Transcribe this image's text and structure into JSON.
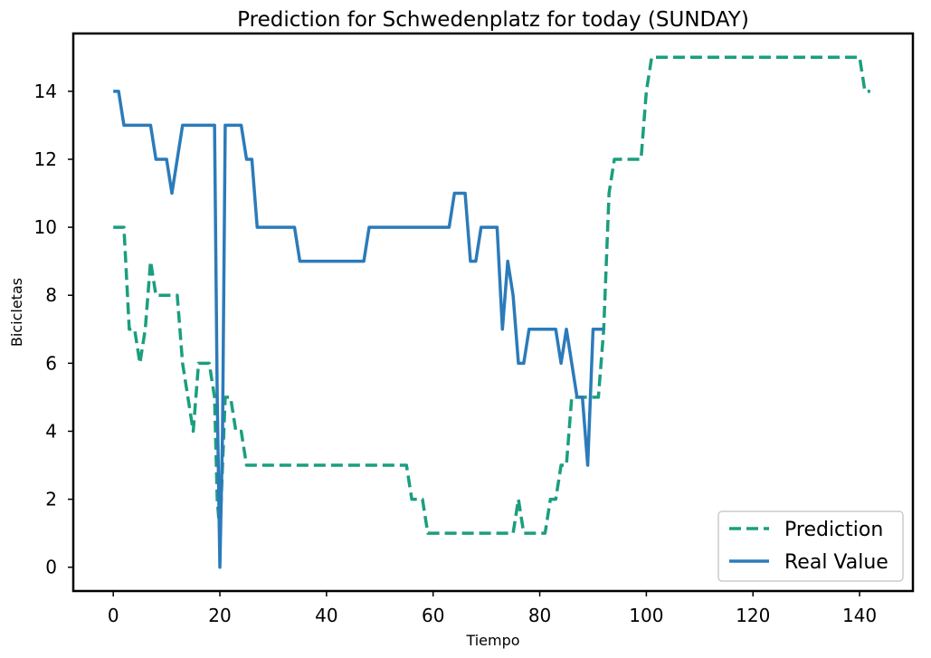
{
  "chart_data": {
    "type": "line",
    "title": "Prediction for Schwedenplatz for today (SUNDAY)",
    "xlabel": "Tiempo",
    "ylabel": "Bicicletas",
    "xlim": [
      -7.5,
      150
    ],
    "ylim": [
      -0.7,
      15.7
    ],
    "xticks": [
      0,
      20,
      40,
      60,
      80,
      100,
      120,
      140
    ],
    "yticks": [
      0,
      2,
      4,
      6,
      8,
      10,
      12,
      14
    ],
    "grid": false,
    "legend_position": "lower right",
    "series": [
      {
        "name": "Prediction",
        "style": "dashed",
        "color": "#1b9e7e",
        "points": [
          [
            0,
            10
          ],
          [
            1,
            10
          ],
          [
            2,
            10
          ],
          [
            3,
            7
          ],
          [
            4,
            7
          ],
          [
            5,
            6
          ],
          [
            6,
            7
          ],
          [
            7,
            9
          ],
          [
            8,
            8
          ],
          [
            9,
            8
          ],
          [
            10,
            8
          ],
          [
            11,
            8
          ],
          [
            12,
            8
          ],
          [
            13,
            6
          ],
          [
            14,
            5
          ],
          [
            15,
            4
          ],
          [
            16,
            6
          ],
          [
            17,
            6
          ],
          [
            18,
            6
          ],
          [
            19,
            5
          ],
          [
            19.5,
            2
          ],
          [
            20,
            1
          ],
          [
            20.5,
            3
          ],
          [
            21,
            5
          ],
          [
            22,
            5
          ],
          [
            23,
            4
          ],
          [
            24,
            4
          ],
          [
            25,
            3
          ],
          [
            26,
            3
          ],
          [
            30,
            3
          ],
          [
            35,
            3
          ],
          [
            40,
            3
          ],
          [
            45,
            3
          ],
          [
            50,
            3
          ],
          [
            55,
            3
          ],
          [
            56,
            2
          ],
          [
            57,
            2
          ],
          [
            58,
            2
          ],
          [
            59,
            1
          ],
          [
            60,
            1
          ],
          [
            65,
            1
          ],
          [
            70,
            1
          ],
          [
            74,
            1
          ],
          [
            75,
            1
          ],
          [
            76,
            2
          ],
          [
            77,
            1
          ],
          [
            78,
            1
          ],
          [
            79,
            1
          ],
          [
            80,
            1
          ],
          [
            81,
            1
          ],
          [
            82,
            2
          ],
          [
            83,
            2
          ],
          [
            84,
            3
          ],
          [
            85,
            3
          ],
          [
            86,
            5
          ],
          [
            87,
            5
          ],
          [
            88,
            5
          ],
          [
            89,
            5
          ],
          [
            90,
            5
          ],
          [
            91,
            5
          ],
          [
            92,
            7
          ],
          [
            93,
            11
          ],
          [
            94,
            12
          ],
          [
            95,
            12
          ],
          [
            96,
            12
          ],
          [
            97,
            12
          ],
          [
            98,
            12
          ],
          [
            99,
            12
          ],
          [
            100,
            14
          ],
          [
            101,
            15
          ],
          [
            102,
            15
          ],
          [
            110,
            15
          ],
          [
            120,
            15
          ],
          [
            130,
            15
          ],
          [
            139,
            15
          ],
          [
            140,
            15
          ],
          [
            141,
            14
          ],
          [
            142,
            14
          ]
        ]
      },
      {
        "name": "Real Value",
        "style": "solid",
        "color": "#2b7bba",
        "points": [
          [
            0,
            14
          ],
          [
            1,
            14
          ],
          [
            2,
            13
          ],
          [
            3,
            13
          ],
          [
            4,
            13
          ],
          [
            5,
            13
          ],
          [
            6,
            13
          ],
          [
            7,
            13
          ],
          [
            8,
            12
          ],
          [
            9,
            12
          ],
          [
            10,
            12
          ],
          [
            11,
            11
          ],
          [
            12,
            12
          ],
          [
            13,
            13
          ],
          [
            14,
            13
          ],
          [
            15,
            13
          ],
          [
            16,
            13
          ],
          [
            17,
            13
          ],
          [
            18,
            13
          ],
          [
            19,
            13
          ],
          [
            19.5,
            5
          ],
          [
            20,
            0
          ],
          [
            20.5,
            4
          ],
          [
            21,
            13
          ],
          [
            22,
            13
          ],
          [
            23,
            13
          ],
          [
            24,
            13
          ],
          [
            25,
            12
          ],
          [
            26,
            12
          ],
          [
            27,
            10
          ],
          [
            28,
            10
          ],
          [
            30,
            10
          ],
          [
            34,
            10
          ],
          [
            35,
            9
          ],
          [
            36,
            9
          ],
          [
            40,
            9
          ],
          [
            45,
            9
          ],
          [
            47,
            9
          ],
          [
            48,
            10
          ],
          [
            50,
            10
          ],
          [
            55,
            10
          ],
          [
            60,
            10
          ],
          [
            63,
            10
          ],
          [
            64,
            11
          ],
          [
            65,
            11
          ],
          [
            66,
            11
          ],
          [
            67,
            9
          ],
          [
            68,
            9
          ],
          [
            69,
            10
          ],
          [
            70,
            10
          ],
          [
            71,
            10
          ],
          [
            72,
            10
          ],
          [
            73,
            7
          ],
          [
            74,
            9
          ],
          [
            75,
            8
          ],
          [
            76,
            6
          ],
          [
            77,
            6
          ],
          [
            78,
            7
          ],
          [
            79,
            7
          ],
          [
            80,
            7
          ],
          [
            81,
            7
          ],
          [
            82,
            7
          ],
          [
            83,
            7
          ],
          [
            84,
            6
          ],
          [
            85,
            7
          ],
          [
            86,
            6
          ],
          [
            87,
            5
          ],
          [
            88,
            5
          ],
          [
            89,
            3
          ],
          [
            90,
            7
          ],
          [
            91,
            7
          ],
          [
            92,
            7
          ]
        ]
      }
    ]
  }
}
